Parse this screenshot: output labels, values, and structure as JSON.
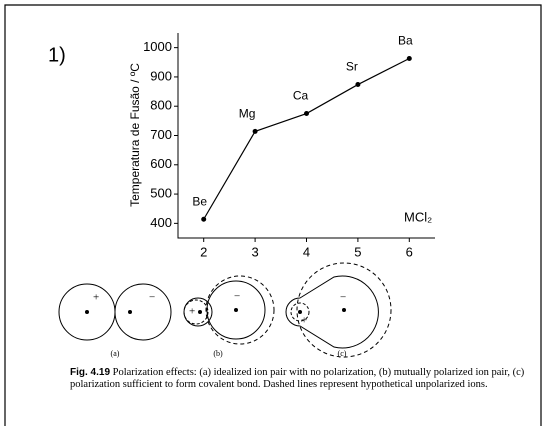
{
  "chart_data": {
    "type": "line",
    "panel_label": "1)",
    "y_label": "Temperatura de Fusão / ºC",
    "annotation": "MCl₂",
    "x": [
      2,
      3,
      4,
      5,
      6
    ],
    "labels": [
      "Be",
      "Mg",
      "Ca",
      "Sr",
      "Ba"
    ],
    "values": [
      414,
      714,
      775,
      874,
      963
    ],
    "color": "#000000",
    "xlim": [
      1.5,
      6.5
    ],
    "xticks": [
      2,
      3,
      4,
      5,
      6
    ],
    "ylim": [
      350,
      1050
    ],
    "yticks": [
      400,
      500,
      600,
      700,
      800,
      900,
      1000
    ]
  },
  "figure": {
    "panels": [
      {
        "label": "(a)",
        "signs": [
          "+",
          "−"
        ]
      },
      {
        "label": "(b)",
        "signs": [
          "+",
          "−"
        ]
      },
      {
        "label": "(c)",
        "signs": [
          "+",
          "−"
        ]
      }
    ],
    "caption": {
      "label": "Fig. 4.19",
      "text": "Polarization effects: (a) idealized ion pair with no polarization, (b) mutually polarized ion pair, (c) polarization sufficient to form covalent bond. Dashed lines represent hypothetical unpolarized ions."
    }
  }
}
